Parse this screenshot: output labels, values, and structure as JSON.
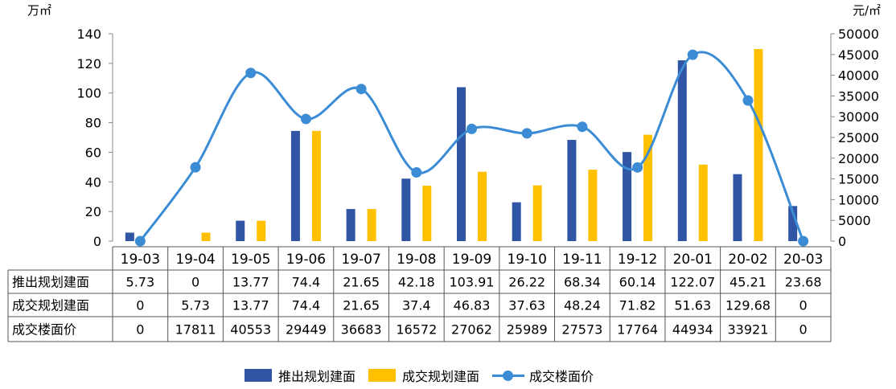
{
  "chart_data": {
    "type": "bar",
    "categories": [
      "19-03",
      "19-04",
      "19-05",
      "19-06",
      "19-07",
      "19-08",
      "19-09",
      "19-10",
      "19-11",
      "19-12",
      "20-01",
      "20-02",
      "20-03"
    ],
    "series": [
      {
        "name": "推出规划建面",
        "kind": "bar",
        "axis": "left",
        "color": "#2F55A4",
        "values": [
          5.73,
          0,
          13.77,
          74.4,
          21.65,
          42.18,
          103.91,
          26.22,
          68.34,
          60.14,
          122.07,
          45.21,
          23.68
        ]
      },
      {
        "name": "成交规划建面",
        "kind": "bar",
        "axis": "left",
        "color": "#FFC000",
        "values": [
          0,
          5.73,
          13.77,
          74.4,
          21.65,
          37.4,
          46.83,
          37.63,
          48.24,
          71.82,
          51.63,
          129.68,
          0
        ]
      },
      {
        "name": "成交楼面价",
        "kind": "line",
        "axis": "right",
        "color": "#3B8BD5",
        "values": [
          0,
          17811,
          40553,
          29449,
          36683,
          16572,
          27062,
          25989,
          27573,
          17764,
          44934,
          33921,
          0
        ]
      }
    ],
    "y_left": {
      "unit": "万㎡",
      "range": [
        0,
        140
      ],
      "ticks": [
        "0",
        "20",
        "40",
        "60",
        "80",
        "100",
        "120",
        "140"
      ],
      "tick_values": [
        0,
        20,
        40,
        60,
        80,
        100,
        120,
        140
      ]
    },
    "y_right": {
      "unit": "元/㎡",
      "range": [
        0,
        50000
      ],
      "ticks": [
        "0",
        "5000",
        "10000",
        "15000",
        "20000",
        "25000",
        "30000",
        "35000",
        "40000",
        "45000",
        "50000"
      ],
      "tick_values": [
        0,
        5000,
        10000,
        15000,
        20000,
        25000,
        30000,
        35000,
        40000,
        45000,
        50000
      ]
    },
    "table_rows": [
      {
        "label": "推出规划建面",
        "cells": [
          "5.73",
          "0",
          "13.77",
          "74.4",
          "21.65",
          "42.18",
          "103.91",
          "26.22",
          "68.34",
          "60.14",
          "122.07",
          "45.21",
          "23.68"
        ]
      },
      {
        "label": "成交规划建面",
        "cells": [
          "0",
          "5.73",
          "13.77",
          "74.4",
          "21.65",
          "37.4",
          "46.83",
          "37.63",
          "48.24",
          "71.82",
          "51.63",
          "129.68",
          "0"
        ]
      },
      {
        "label": "成交楼面价",
        "cells": [
          "0",
          "17811",
          "40553",
          "29449",
          "36683",
          "16572",
          "27062",
          "25989",
          "27573",
          "17764",
          "44934",
          "33921",
          "0"
        ]
      }
    ],
    "grid": false,
    "legend_position": "bottom-center"
  }
}
